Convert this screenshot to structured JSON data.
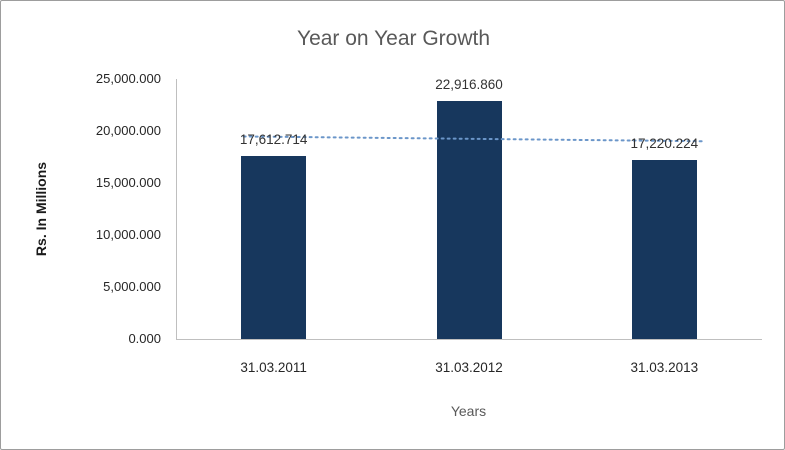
{
  "chart_data": {
    "type": "bar",
    "title": "Year on Year Growth",
    "xlabel": "Years",
    "ylabel": "Rs. In Millions",
    "categories": [
      "31.03.2011",
      "31.03.2012",
      "31.03.2013"
    ],
    "values": [
      17612.714,
      22916.86,
      17220.224
    ],
    "data_labels": [
      "17,612.714",
      "22,916.860",
      "17,220.224"
    ],
    "y_ticks": [
      "25,000.000",
      "20,000.000",
      "15,000.000",
      "10,000.000",
      "5,000.000",
      "0.000"
    ],
    "ylim": [
      0,
      25000
    ],
    "grid": false,
    "legend": "none",
    "bar_color": "#17375d",
    "title_color": "#595959",
    "trendline": {
      "type": "linear",
      "style": "dotted",
      "color": "#6b96c9",
      "fitted_points": [
        19446.178,
        19249.933,
        19053.688
      ]
    }
  }
}
